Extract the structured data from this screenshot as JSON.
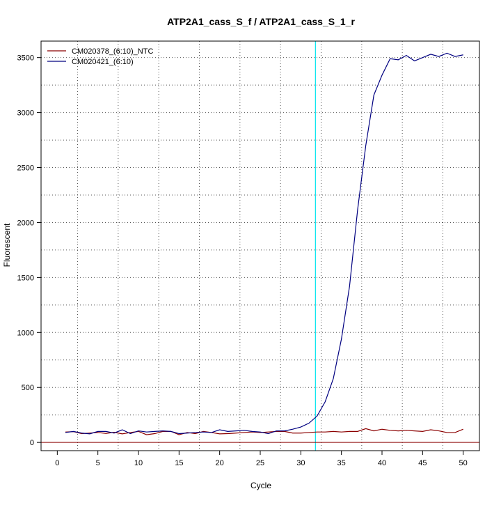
{
  "chart_data": {
    "type": "line",
    "title": "ATP2A1_cass_S_f / ATP2A1_cass_S_1_r",
    "xlabel": "Cycle",
    "ylabel": "Fluorescent",
    "xlim": [
      -2,
      52
    ],
    "ylim": [
      -75,
      3650
    ],
    "x_ticks": [
      0,
      5,
      10,
      15,
      20,
      25,
      30,
      35,
      40,
      45,
      50
    ],
    "y_ticks": [
      0,
      500,
      1000,
      1500,
      2000,
      2500,
      3000,
      3500
    ],
    "grid": true,
    "legend_position": "top-left",
    "threshold_line": {
      "x": 31.8,
      "color": "#00e5ee"
    },
    "baseline": {
      "y": 0,
      "color": "#8b0000"
    },
    "x": [
      1,
      2,
      3,
      4,
      5,
      6,
      7,
      8,
      9,
      10,
      11,
      12,
      13,
      14,
      15,
      16,
      17,
      18,
      19,
      20,
      21,
      22,
      23,
      24,
      25,
      26,
      27,
      28,
      29,
      30,
      31,
      32,
      33,
      34,
      35,
      36,
      37,
      38,
      39,
      40,
      41,
      42,
      43,
      44,
      45,
      46,
      47,
      48,
      49,
      50
    ],
    "series": [
      {
        "name": "CM020378_(6:10)_NTC",
        "color": "#8b0000",
        "values": [
          95,
          98,
          80,
          85,
          90,
          82,
          92,
          78,
          90,
          100,
          70,
          80,
          100,
          100,
          70,
          90,
          80,
          100,
          90,
          78,
          80,
          85,
          90,
          95,
          90,
          95,
          100,
          100,
          85,
          85,
          90,
          95,
          95,
          100,
          95,
          100,
          100,
          125,
          105,
          120,
          110,
          105,
          110,
          105,
          100,
          115,
          105,
          90,
          90,
          120
        ]
      },
      {
        "name": "CM020421_(6:10)",
        "color": "#000080",
        "values": [
          90,
          100,
          85,
          78,
          100,
          100,
          85,
          115,
          80,
          105,
          95,
          100,
          105,
          100,
          80,
          85,
          90,
          95,
          90,
          115,
          100,
          105,
          110,
          100,
          95,
          80,
          105,
          105,
          120,
          140,
          175,
          240,
          370,
          580,
          940,
          1420,
          2120,
          2700,
          3160,
          3340,
          3490,
          3480,
          3520,
          3470,
          3500,
          3530,
          3510,
          3540,
          3510,
          3525
        ]
      }
    ]
  }
}
